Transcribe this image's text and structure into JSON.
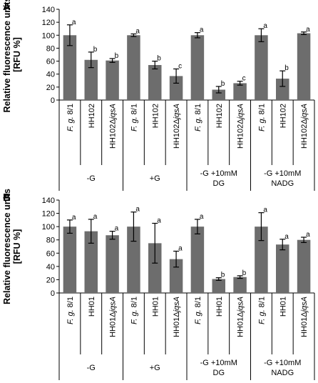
{
  "style": {
    "bar_color": "#6d6d6d",
    "axis_color": "#000000"
  },
  "chart_data": [
    {
      "type": "bar",
      "panel_label": "A",
      "ylabel": [
        "Relative fluorescence units",
        "[RFU %]"
      ],
      "ylim": [
        0,
        140
      ],
      "yticks": [
        0,
        20,
        40,
        60,
        80,
        100,
        120,
        140
      ],
      "categories": [
        [
          "F. g. 8/1",
          "HH102",
          "HH102ΔjqsA"
        ],
        [
          "F. g. 8/1",
          "HH102",
          "HH102ΔjqsA"
        ],
        [
          "F. g. 8/1",
          "HH102",
          "HH102ΔjqsA"
        ],
        [
          "F. g. 8/1",
          "HH102",
          "HH102ΔjqsA"
        ]
      ],
      "groups": [
        [
          "-G"
        ],
        [
          "+G"
        ],
        [
          "-G +10mM",
          "DG"
        ],
        [
          "-G +10mM",
          "NADG"
        ]
      ],
      "values": [
        [
          100,
          62,
          61
        ],
        [
          100,
          54,
          37
        ],
        [
          100,
          16,
          26
        ],
        [
          100,
          33,
          103
        ]
      ],
      "errors": [
        [
          16,
          12,
          3
        ],
        [
          2,
          6,
          11
        ],
        [
          4,
          5,
          3
        ],
        [
          10,
          12,
          2
        ]
      ],
      "significance": [
        [
          "a",
          "b",
          "b"
        ],
        [
          "a",
          "b",
          "c"
        ],
        [
          "a",
          "b",
          "c"
        ],
        [
          "a",
          "b",
          "a"
        ]
      ]
    },
    {
      "type": "bar",
      "panel_label": "B",
      "ylabel": [
        "Relative fluorescence units",
        "[RFU %]"
      ],
      "ylim": [
        0,
        140
      ],
      "yticks": [
        0,
        20,
        40,
        60,
        80,
        100,
        120,
        140
      ],
      "categories": [
        [
          "F. g. 8/1",
          "HH01",
          "HH01ΔjqsA"
        ],
        [
          "F. g. 8/1",
          "HH01",
          "HH01ΔjqsA"
        ],
        [
          "F. g. 8/1",
          "HH01",
          "HH01ΔjqsA"
        ],
        [
          "F. g. 8/1",
          "HH01",
          "HH01ΔjqsA"
        ]
      ],
      "groups": [
        [
          "-G"
        ],
        [
          "+G"
        ],
        [
          "-G +10mM",
          "DG"
        ],
        [
          "-G +10mM",
          "NADG"
        ]
      ],
      "values": [
        [
          100,
          93,
          87
        ],
        [
          100,
          75,
          51
        ],
        [
          100,
          21,
          24
        ],
        [
          100,
          73,
          80
        ]
      ],
      "errors": [
        [
          10,
          18,
          6
        ],
        [
          22,
          30,
          12
        ],
        [
          11,
          2,
          2
        ],
        [
          21,
          8,
          4
        ]
      ],
      "significance": [
        [
          "a",
          "a",
          "a"
        ],
        [
          "a",
          "a",
          "a"
        ],
        [
          "a",
          "b",
          "b"
        ],
        [
          "a",
          "a",
          "a"
        ]
      ]
    }
  ]
}
